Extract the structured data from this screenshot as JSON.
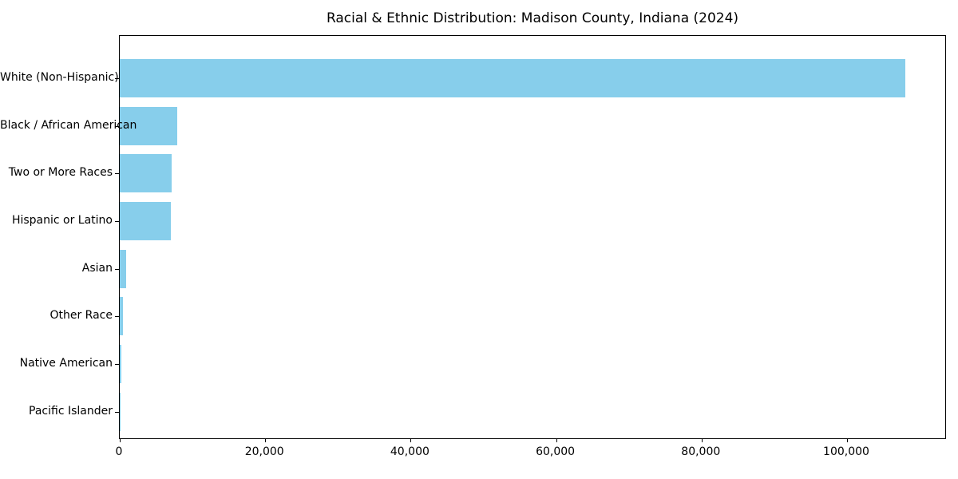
{
  "figure": {
    "background": "#ffffff",
    "text_color": "#000000",
    "spine_color": "#000000"
  },
  "chart_data": {
    "type": "bar",
    "orientation": "horizontal",
    "title": "Racial & Ethnic Distribution: Madison County, Indiana (2024)",
    "categories": [
      "White (Non-Hispanic)",
      "Black / African American",
      "Two or More Races",
      "Hispanic or Latino",
      "Asian",
      "Other Race",
      "Native American",
      "Pacific Islander"
    ],
    "values": [
      108000,
      7900,
      7100,
      7000,
      900,
      400,
      250,
      50
    ],
    "bar_color": "#87CEEB",
    "xlabel": "",
    "ylabel": "",
    "xlim": [
      0,
      113500
    ],
    "xticks": [
      0,
      20000,
      40000,
      60000,
      80000,
      100000
    ],
    "xtick_labels": [
      "0",
      "20,000",
      "40,000",
      "60,000",
      "80,000",
      "100,000"
    ],
    "grid": false,
    "legend": null
  }
}
